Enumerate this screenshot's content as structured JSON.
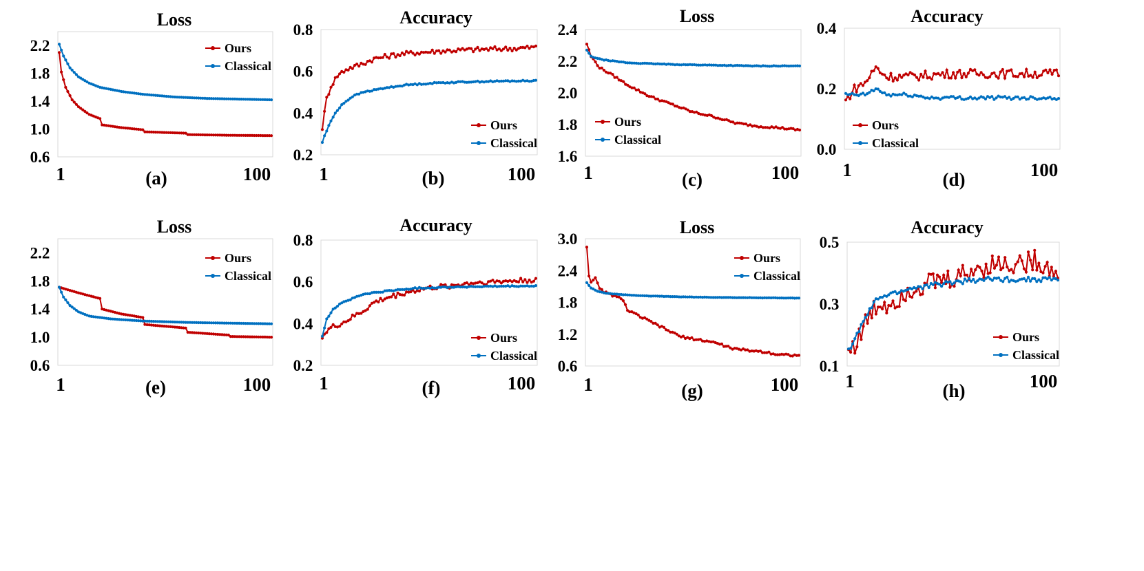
{
  "colors": {
    "ours": "#c00000",
    "classical": "#0070c0"
  },
  "chart_data": [
    {
      "type": "line",
      "title": "Loss",
      "caption": "(a)",
      "x_range": [
        1,
        100
      ],
      "x_tick_labels": [
        "1",
        "100"
      ],
      "ylim": [
        0.6,
        2.4
      ],
      "y_tick_labels": [
        "0.6",
        "1.0",
        "1.4",
        "1.8",
        "2.2"
      ],
      "legend": "top-right",
      "series": [
        {
          "name": "Ours",
          "anchors": [
            [
              1,
              2.1
            ],
            [
              2,
              1.82
            ],
            [
              4,
              1.6
            ],
            [
              7,
              1.42
            ],
            [
              10,
              1.32
            ],
            [
              15,
              1.21
            ],
            [
              20,
              1.15
            ],
            [
              21,
              1.06
            ],
            [
              30,
              1.02
            ],
            [
              40,
              0.99
            ],
            [
              41,
              0.96
            ],
            [
              60,
              0.94
            ],
            [
              61,
              0.92
            ],
            [
              80,
              0.91
            ],
            [
              100,
              0.905
            ]
          ]
        },
        {
          "name": "Classical",
          "anchors": [
            [
              1,
              2.22
            ],
            [
              3,
              2.05
            ],
            [
              6,
              1.88
            ],
            [
              10,
              1.75
            ],
            [
              15,
              1.66
            ],
            [
              20,
              1.6
            ],
            [
              30,
              1.54
            ],
            [
              40,
              1.5
            ],
            [
              55,
              1.46
            ],
            [
              70,
              1.44
            ],
            [
              85,
              1.43
            ],
            [
              100,
              1.42
            ]
          ]
        }
      ]
    },
    {
      "type": "line",
      "title": "Accuracy",
      "caption": "(b)",
      "x_range": [
        1,
        100
      ],
      "x_tick_labels": [
        "1",
        "100"
      ],
      "ylim": [
        0.2,
        0.8
      ],
      "y_tick_labels": [
        "0.2",
        "0.4",
        "0.6",
        "0.8"
      ],
      "legend": "bottom-right",
      "series": [
        {
          "name": "Ours",
          "anchors": [
            [
              1,
              0.33
            ],
            [
              2,
              0.4
            ],
            [
              3,
              0.47
            ],
            [
              5,
              0.53
            ],
            [
              8,
              0.58
            ],
            [
              12,
              0.61
            ],
            [
              18,
              0.63
            ],
            [
              25,
              0.66
            ],
            [
              35,
              0.68
            ],
            [
              45,
              0.69
            ],
            [
              60,
              0.7
            ],
            [
              75,
              0.705
            ],
            [
              90,
              0.71
            ],
            [
              100,
              0.715
            ]
          ],
          "noise": 0.012
        },
        {
          "name": "Classical",
          "anchors": [
            [
              1,
              0.26
            ],
            [
              2,
              0.29
            ],
            [
              4,
              0.34
            ],
            [
              7,
              0.4
            ],
            [
              10,
              0.44
            ],
            [
              15,
              0.48
            ],
            [
              20,
              0.5
            ],
            [
              30,
              0.52
            ],
            [
              40,
              0.535
            ],
            [
              55,
              0.545
            ],
            [
              70,
              0.55
            ],
            [
              85,
              0.553
            ],
            [
              100,
              0.555
            ]
          ],
          "noise": 0.003
        }
      ]
    },
    {
      "type": "line",
      "title": "Loss",
      "caption": "(c)",
      "x_range": [
        1,
        100
      ],
      "x_tick_labels": [
        "1",
        "100"
      ],
      "ylim": [
        1.6,
        2.4
      ],
      "y_tick_labels": [
        "1.6",
        "1.8",
        "2.0",
        "2.2",
        "2.4"
      ],
      "legend": "bottom-left",
      "series": [
        {
          "name": "Ours",
          "anchors": [
            [
              1,
              2.31
            ],
            [
              3,
              2.23
            ],
            [
              7,
              2.16
            ],
            [
              12,
              2.12
            ],
            [
              20,
              2.05
            ],
            [
              30,
              1.98
            ],
            [
              40,
              1.93
            ],
            [
              50,
              1.88
            ],
            [
              60,
              1.85
            ],
            [
              70,
              1.81
            ],
            [
              80,
              1.79
            ],
            [
              90,
              1.78
            ],
            [
              100,
              1.765
            ]
          ],
          "noise": 0.006
        },
        {
          "name": "Classical",
          "anchors": [
            [
              1,
              2.27
            ],
            [
              3,
              2.23
            ],
            [
              8,
              2.21
            ],
            [
              20,
              2.19
            ],
            [
              40,
              2.18
            ],
            [
              60,
              2.175
            ],
            [
              80,
              2.17
            ],
            [
              100,
              2.17
            ]
          ],
          "noise": 0.002
        }
      ]
    },
    {
      "type": "line",
      "title": "Accuracy",
      "caption": "(d)",
      "x_range": [
        1,
        100
      ],
      "x_tick_labels": [
        "1",
        "100"
      ],
      "ylim": [
        0.0,
        0.4
      ],
      "y_tick_labels": [
        "0.0",
        "0.2",
        "0.4"
      ],
      "legend": "bottom-left",
      "series": [
        {
          "name": "Ours",
          "anchors": [
            [
              1,
              0.16
            ],
            [
              5,
              0.2
            ],
            [
              10,
              0.22
            ],
            [
              15,
              0.27
            ],
            [
              20,
              0.24
            ],
            [
              30,
              0.24
            ],
            [
              50,
              0.25
            ],
            [
              70,
              0.25
            ],
            [
              100,
              0.25
            ]
          ],
          "noise": 0.015
        },
        {
          "name": "Classical",
          "anchors": [
            [
              1,
              0.18
            ],
            [
              10,
              0.18
            ],
            [
              15,
              0.2
            ],
            [
              20,
              0.18
            ],
            [
              30,
              0.18
            ],
            [
              40,
              0.17
            ],
            [
              100,
              0.17
            ]
          ],
          "noise": 0.006
        }
      ]
    },
    {
      "type": "line",
      "title": "Loss",
      "caption": "(e)",
      "x_range": [
        1,
        100
      ],
      "x_tick_labels": [
        "1",
        "100"
      ],
      "ylim": [
        0.6,
        2.4
      ],
      "y_tick_labels": [
        "0.6",
        "1.0",
        "1.4",
        "1.8",
        "2.2"
      ],
      "legend": "top-right",
      "series": [
        {
          "name": "Ours",
          "anchors": [
            [
              1,
              1.71
            ],
            [
              10,
              1.63
            ],
            [
              20,
              1.55
            ],
            [
              21,
              1.4
            ],
            [
              30,
              1.33
            ],
            [
              40,
              1.28
            ],
            [
              41,
              1.18
            ],
            [
              60,
              1.13
            ],
            [
              61,
              1.07
            ],
            [
              80,
              1.03
            ],
            [
              81,
              1.01
            ],
            [
              100,
              1.0
            ]
          ]
        },
        {
          "name": "Classical",
          "anchors": [
            [
              1,
              1.71
            ],
            [
              3,
              1.57
            ],
            [
              6,
              1.45
            ],
            [
              10,
              1.36
            ],
            [
              15,
              1.3
            ],
            [
              25,
              1.26
            ],
            [
              40,
              1.23
            ],
            [
              60,
              1.21
            ],
            [
              80,
              1.2
            ],
            [
              100,
              1.19
            ]
          ]
        }
      ]
    },
    {
      "type": "line",
      "title": "Accuracy",
      "caption": "(f)",
      "x_range": [
        1,
        100
      ],
      "x_tick_labels": [
        "1",
        "100"
      ],
      "ylim": [
        0.2,
        0.8
      ],
      "y_tick_labels": [
        "0.2",
        "0.4",
        "0.6",
        "0.8"
      ],
      "legend": "bottom-right",
      "series": [
        {
          "name": "Ours",
          "anchors": [
            [
              1,
              0.34
            ],
            [
              5,
              0.38
            ],
            [
              10,
              0.4
            ],
            [
              15,
              0.43
            ],
            [
              20,
              0.46
            ],
            [
              25,
              0.5
            ],
            [
              30,
              0.52
            ],
            [
              40,
              0.55
            ],
            [
              50,
              0.57
            ],
            [
              60,
              0.58
            ],
            [
              70,
              0.595
            ],
            [
              80,
              0.6
            ],
            [
              90,
              0.605
            ],
            [
              100,
              0.61
            ]
          ],
          "noise": 0.012
        },
        {
          "name": "Classical",
          "anchors": [
            [
              1,
              0.34
            ],
            [
              3,
              0.42
            ],
            [
              6,
              0.47
            ],
            [
              10,
              0.5
            ],
            [
              15,
              0.52
            ],
            [
              20,
              0.54
            ],
            [
              30,
              0.555
            ],
            [
              45,
              0.57
            ],
            [
              60,
              0.575
            ],
            [
              80,
              0.578
            ],
            [
              100,
              0.58
            ]
          ],
          "noise": 0.003
        }
      ]
    },
    {
      "type": "line",
      "title": "Loss",
      "caption": "(g)",
      "x_range": [
        1,
        100
      ],
      "x_tick_labels": [
        "1",
        "100"
      ],
      "ylim": [
        0.6,
        3.0
      ],
      "y_tick_labels": [
        "0.6",
        "1.2",
        "1.8",
        "2.4",
        "3.0"
      ],
      "legend": "top-right",
      "series": [
        {
          "name": "Ours",
          "anchors": [
            [
              1,
              2.85
            ],
            [
              2,
              2.3
            ],
            [
              3,
              2.2
            ],
            [
              5,
              2.25
            ],
            [
              7,
              2.05
            ],
            [
              10,
              1.98
            ],
            [
              15,
              1.9
            ],
            [
              18,
              1.85
            ],
            [
              20,
              1.65
            ],
            [
              30,
              1.45
            ],
            [
              40,
              1.25
            ],
            [
              45,
              1.15
            ],
            [
              60,
              1.05
            ],
            [
              70,
              0.92
            ],
            [
              85,
              0.86
            ],
            [
              90,
              0.82
            ],
            [
              100,
              0.8
            ]
          ],
          "noise": 0.02
        },
        {
          "name": "Classical",
          "anchors": [
            [
              1,
              2.17
            ],
            [
              3,
              2.07
            ],
            [
              6,
              2.01
            ],
            [
              10,
              1.97
            ],
            [
              20,
              1.94
            ],
            [
              30,
              1.92
            ],
            [
              50,
              1.9
            ],
            [
              70,
              1.89
            ],
            [
              100,
              1.88
            ]
          ],
          "noise": 0.003
        }
      ]
    },
    {
      "type": "line",
      "title": "Accuracy",
      "caption": "(h)",
      "x_range": [
        1,
        100
      ],
      "x_tick_labels": [
        "1",
        "100"
      ],
      "ylim": [
        0.1,
        0.5
      ],
      "y_tick_labels": [
        "0.1",
        "0.3",
        "0.5"
      ],
      "legend": "bottom-right",
      "series": [
        {
          "name": "Ours",
          "anchors": [
            [
              1,
              0.15
            ],
            [
              5,
              0.18
            ],
            [
              10,
              0.25
            ],
            [
              15,
              0.3
            ],
            [
              20,
              0.3
            ],
            [
              30,
              0.35
            ],
            [
              40,
              0.37
            ],
            [
              50,
              0.38
            ],
            [
              60,
              0.41
            ],
            [
              70,
              0.43
            ],
            [
              80,
              0.43
            ],
            [
              90,
              0.44
            ],
            [
              100,
              0.4
            ]
          ],
          "noise": 0.035
        },
        {
          "name": "Classical",
          "anchors": [
            [
              1,
              0.15
            ],
            [
              5,
              0.2
            ],
            [
              10,
              0.27
            ],
            [
              15,
              0.32
            ],
            [
              20,
              0.33
            ],
            [
              30,
              0.35
            ],
            [
              40,
              0.36
            ],
            [
              50,
              0.37
            ],
            [
              65,
              0.38
            ],
            [
              100,
              0.38
            ]
          ],
          "noise": 0.008
        }
      ]
    }
  ]
}
